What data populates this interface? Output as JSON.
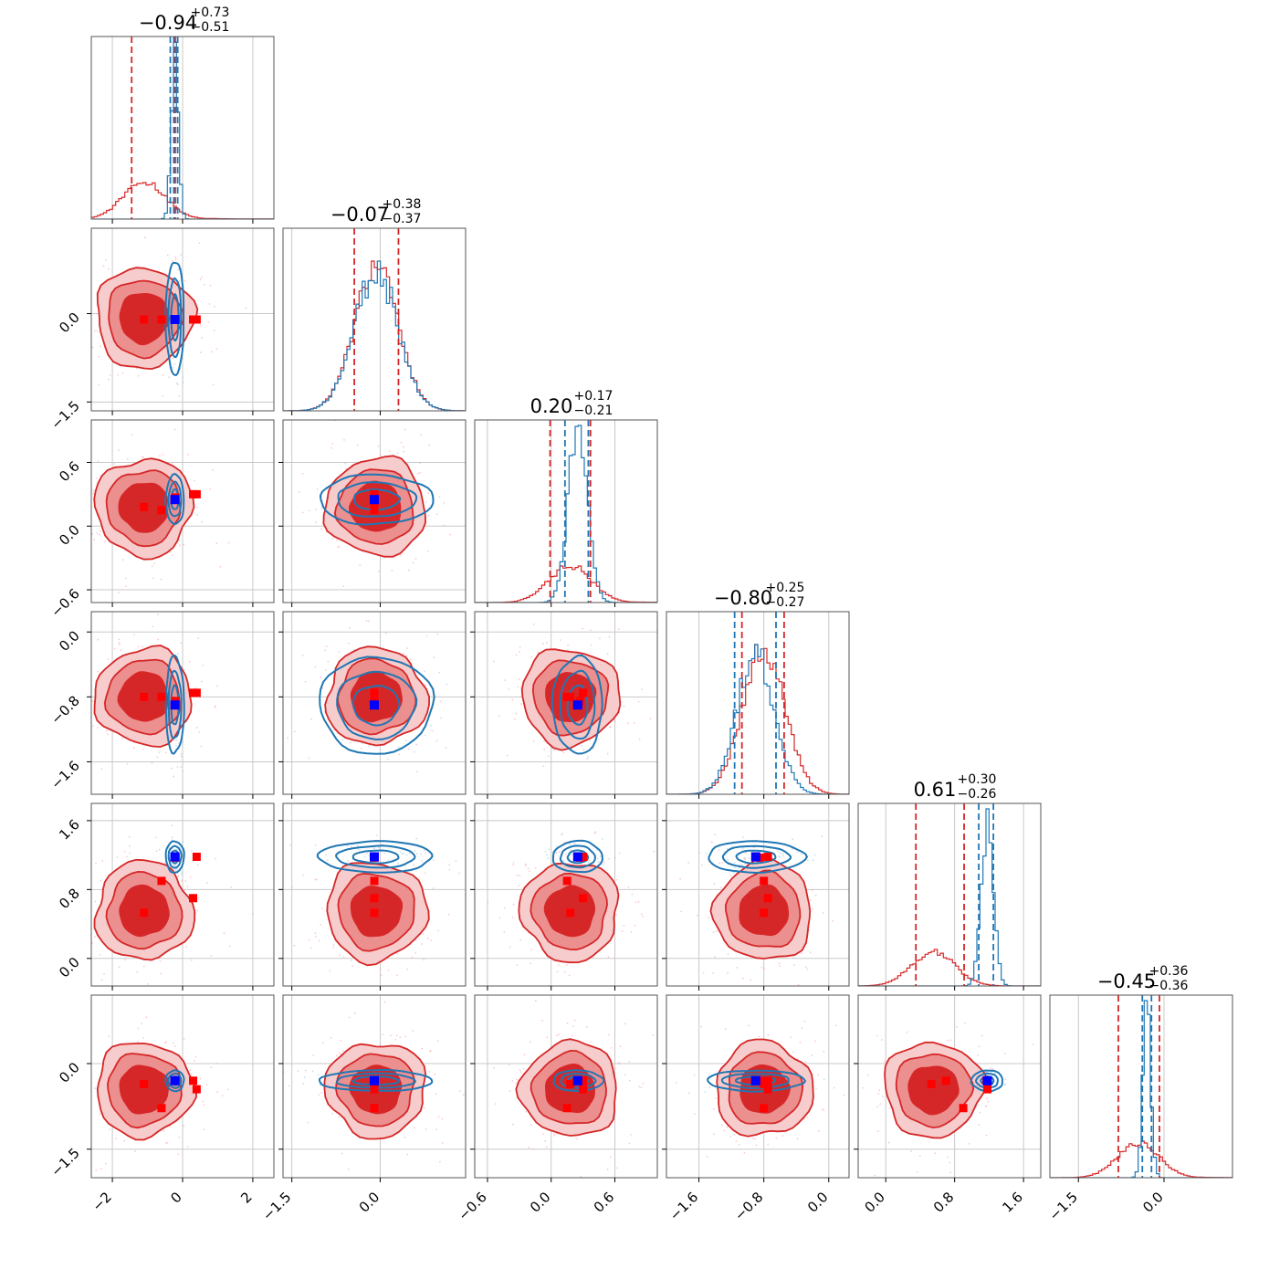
{
  "chart_data": {
    "type": "corner",
    "n_params": 6,
    "colors": {
      "red": "#d62728",
      "red_mid": "#ec8f8f",
      "red_light": "#f6cccc",
      "blue": "#1f77b4",
      "marker_blue": "#0000ff",
      "marker_red": "#ff0000",
      "grid": "#c8c8c8"
    },
    "params": [
      {
        "title_main": "−0.94",
        "title_plus": "+0.73",
        "title_minus": "−0.51",
        "range": [
          -2.6,
          2.6
        ],
        "ticks": [
          -2,
          0,
          2
        ],
        "tick_labels": [
          "−2",
          "0",
          "2"
        ],
        "red_center": -1.1,
        "red_sigma": 0.6,
        "red_tail": 0.9,
        "blue_center": -0.22,
        "blue_sigma": 0.1,
        "red_quantiles": [
          -1.45,
          -0.21
        ],
        "blue_quantiles": [
          -0.35,
          -0.25,
          -0.14
        ],
        "blue_truth": -0.22,
        "red_markers": [
          -1.1,
          -0.6,
          -0.2,
          0.3,
          0.4
        ]
      },
      {
        "title_main": "−0.07",
        "title_plus": "+0.38",
        "title_minus": "−0.37",
        "range": [
          -1.65,
          1.45
        ],
        "ticks": [
          -1.5,
          0.0
        ],
        "tick_labels": [
          "−1.5",
          "0.0"
        ],
        "red_center": -0.07,
        "red_sigma": 0.37,
        "red_tail": 0,
        "blue_center": -0.07,
        "blue_sigma": 0.37,
        "red_quantiles": [
          -0.44,
          0.31
        ],
        "blue_quantiles": [],
        "blue_truth": -0.1,
        "red_markers": [
          -0.1,
          -0.1,
          -0.1,
          -0.1,
          -0.1
        ]
      },
      {
        "title_main": "0.20",
        "title_plus": "+0.17",
        "title_minus": "−0.21",
        "range": [
          -0.72,
          1.0
        ],
        "ticks": [
          -0.6,
          0.0,
          0.6
        ],
        "tick_labels": [
          "−0.6",
          "0.0",
          "0.6"
        ],
        "red_center": 0.18,
        "red_sigma": 0.2,
        "red_tail": 0.3,
        "blue_center": 0.25,
        "blue_sigma": 0.09,
        "red_quantiles": [
          -0.01,
          0.37
        ],
        "blue_quantiles": [
          0.13,
          0.35
        ],
        "blue_truth": 0.25,
        "red_markers": [
          0.18,
          0.15,
          0.27,
          0.3,
          0.3
        ]
      },
      {
        "title_main": "−0.80",
        "title_plus": "+0.25",
        "title_minus": "−0.27",
        "range": [
          -2.0,
          0.25
        ],
        "ticks": [
          -1.6,
          -0.8,
          0.0
        ],
        "tick_labels": [
          "−1.6",
          "−0.8",
          "0.0"
        ],
        "red_center": -0.8,
        "red_sigma": 0.26,
        "red_tail": 0,
        "blue_center": -0.9,
        "blue_sigma": 0.23,
        "red_quantiles": [
          -1.07,
          -0.55
        ],
        "blue_quantiles": [
          -1.16,
          -0.65
        ],
        "blue_truth": -0.9,
        "red_markers": [
          -0.8,
          -0.8,
          -0.85,
          -0.75,
          -0.75
        ]
      },
      {
        "title_main": "0.61",
        "title_plus": "+0.30",
        "title_minus": "−0.26",
        "range": [
          -0.32,
          1.8
        ],
        "ticks": [
          0.0,
          0.8,
          1.6
        ],
        "tick_labels": [
          "0.0",
          "0.8",
          "1.6"
        ],
        "red_center": 0.55,
        "red_sigma": 0.25,
        "red_tail": 0,
        "blue_center": 1.18,
        "blue_sigma": 0.07,
        "red_quantiles": [
          0.35,
          0.91
        ],
        "blue_quantiles": [
          1.08,
          1.25
        ],
        "blue_truth": 1.18,
        "red_markers": [
          0.53,
          0.9,
          1.17,
          0.7,
          1.18
        ]
      },
      {
        "title_main": "−0.45",
        "title_plus": "+0.36",
        "title_minus": "−0.36",
        "range": [
          -2.0,
          1.2
        ],
        "ticks": [
          -1.5,
          0.0
        ],
        "tick_labels": [
          "−1.5",
          "0.0"
        ],
        "red_center": -0.45,
        "red_sigma": 0.36,
        "red_tail": 0.5,
        "blue_center": -0.3,
        "blue_sigma": 0.07,
        "red_quantiles": [
          -0.8,
          -0.08
        ],
        "blue_quantiles": [
          -0.38,
          -0.22
        ],
        "blue_truth": -0.3,
        "red_markers": [
          -0.36,
          -0.78,
          -0.3,
          -0.3,
          -0.45
        ]
      }
    ]
  }
}
